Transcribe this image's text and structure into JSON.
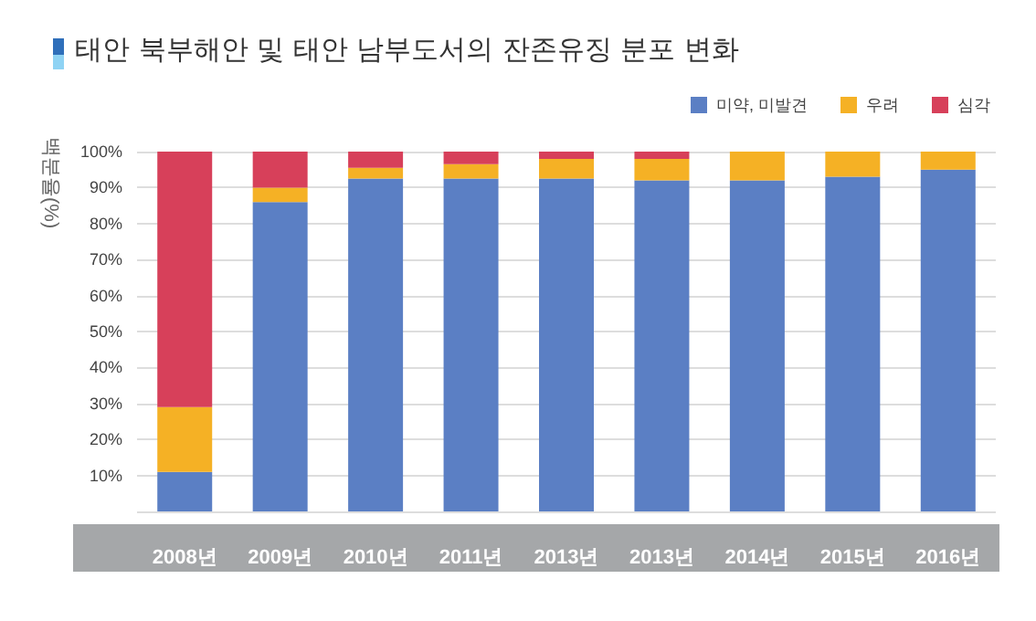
{
  "chart_data": {
    "type": "bar",
    "stacked": true,
    "title": "태안 북부해안 및 태안 남부도서의 잔존유징 분포 변화",
    "ylabel": "백분율(%)",
    "categories": [
      "2008년",
      "2009년",
      "2010년",
      "2011년",
      "2013년",
      "2013년",
      "2014년",
      "2015년",
      "2016년"
    ],
    "series": [
      {
        "name": "미약, 미발견",
        "color": "#5b7fc4",
        "values": [
          11,
          86,
          92.5,
          92.5,
          92.5,
          92,
          92,
          93,
          95
        ]
      },
      {
        "name": "우려",
        "color": "#f5b125",
        "values": [
          18,
          4,
          3,
          4,
          5.5,
          6,
          8,
          7,
          5
        ]
      },
      {
        "name": "심각",
        "color": "#d7405a",
        "values": [
          71,
          10,
          4.5,
          3.5,
          2,
          2,
          0,
          0,
          0
        ]
      }
    ],
    "ylim": [
      0,
      100
    ],
    "yticks": [
      {
        "value": 0,
        "label": null
      },
      {
        "value": 10,
        "label": "10%"
      },
      {
        "value": 20,
        "label": "20%"
      },
      {
        "value": 30,
        "label": "30%"
      },
      {
        "value": 40,
        "label": "40%"
      },
      {
        "value": 50,
        "label": "50%"
      },
      {
        "value": 60,
        "label": "60%"
      },
      {
        "value": 70,
        "label": "70%"
      },
      {
        "value": 80,
        "label": "80%"
      },
      {
        "value": 90,
        "label": "90%"
      },
      {
        "value": 100,
        "label": "100%"
      }
    ],
    "grid": "y",
    "legend": "top right"
  }
}
